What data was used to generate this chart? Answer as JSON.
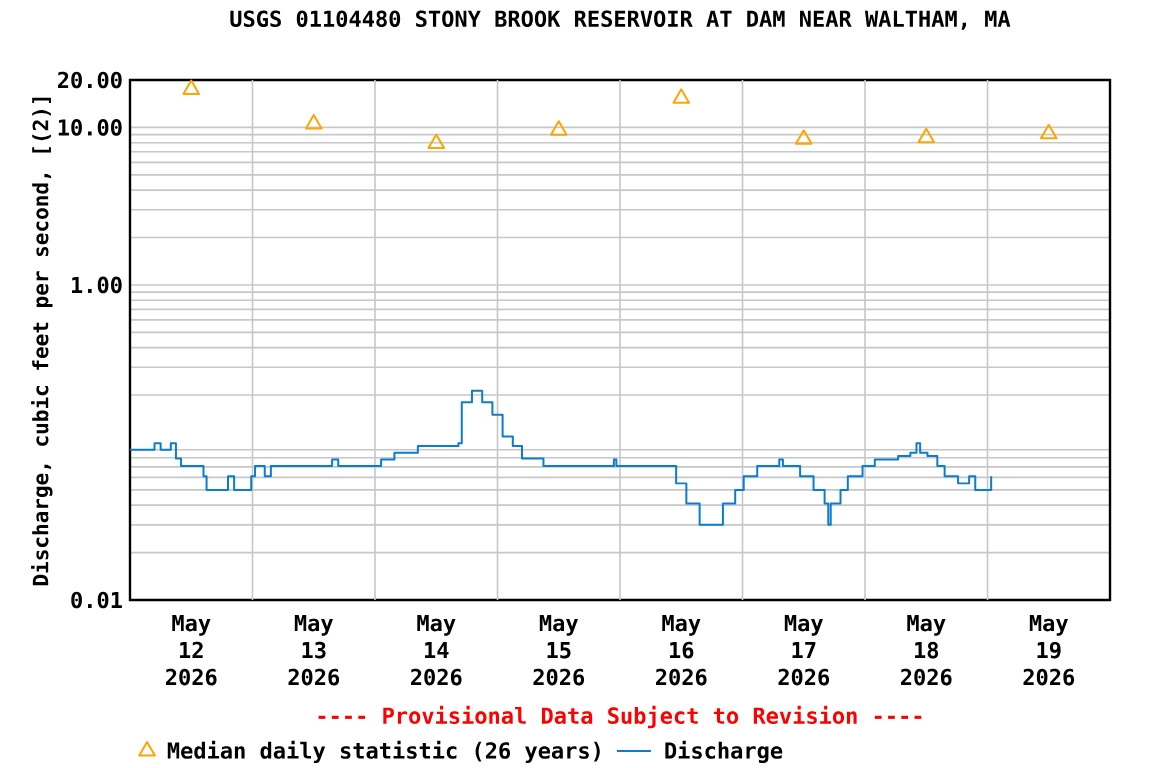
{
  "chart_data": {
    "type": "step",
    "title": "USGS 01104480 STONY BROOK RESERVOIR AT DAM NEAR WALTHAM, MA",
    "ylabel": "Discharge, cubic feet per second, [(2)]",
    "annotations": [
      "---- Provisional Data Subject to Revision ----"
    ],
    "log": "y",
    "grid": true,
    "legend": "bottom",
    "xlim": [
      "2026-05-12T00:00",
      "2026-05-20T00:00"
    ],
    "xticks": [
      {
        "value": "2026-05-12T12:00",
        "label": "May 12 2026"
      },
      {
        "value": "2026-05-13T12:00",
        "label": "May 13 2026"
      },
      {
        "value": "2026-05-14T12:00",
        "label": "May 14 2026"
      },
      {
        "value": "2026-05-15T12:00",
        "label": "May 15 2026"
      },
      {
        "value": "2026-05-16T12:00",
        "label": "May 16 2026"
      },
      {
        "value": "2026-05-17T12:00",
        "label": "May 17 2026"
      },
      {
        "value": "2026-05-18T12:00",
        "label": "May 18 2026"
      },
      {
        "value": "2026-05-19T12:00",
        "label": "May 19 2026"
      },
      {
        "value": "2026-05-13T00:00",
        "label": null
      },
      {
        "value": "2026-05-14T00:00",
        "label": null
      },
      {
        "value": "2026-05-15T00:00",
        "label": null
      },
      {
        "value": "2026-05-16T00:00",
        "label": null
      },
      {
        "value": "2026-05-17T00:00",
        "label": null
      },
      {
        "value": "2026-05-18T00:00",
        "label": null
      },
      {
        "value": "2026-05-19T00:00",
        "label": null
      }
    ],
    "ylim": [
      0.01,
      20
    ],
    "yticks": [
      0.01,
      {
        "value": 1,
        "label": "1.00"
      },
      {
        "value": 10,
        "label": "10.00"
      },
      {
        "value": 20,
        "label": "20.00"
      }
    ],
    "series": [
      {
        "name": "Median daily statistic (26 years)",
        "type": "scatter",
        "marker": "triangle",
        "color": "#ffa500",
        "x": [
          "2026-05-12T12:00",
          "2026-05-13T12:00",
          "2026-05-14T12:00",
          "2026-05-15T12:00",
          "2026-05-16T12:00",
          "2026-05-17T12:00",
          "2026-05-18T12:00",
          "2026-05-19T12:00"
        ],
        "values": [
          17.4,
          10.5,
          7.9,
          9.6,
          15.3,
          8.4,
          8.6,
          9.1
        ]
      },
      {
        "name": "Discharge",
        "color": "#0a7dcf",
        "x": [
          "2026-05-12T00:00",
          "2026-05-12T04:48",
          "2026-05-12T06:00",
          "2026-05-12T08:00",
          "2026-05-12T09:00",
          "2026-05-12T10:00",
          "2026-05-12T13:12",
          "2026-05-12T14:24",
          "2026-05-12T15:00",
          "2026-05-12T18:00",
          "2026-05-12T19:12",
          "2026-05-12T20:24",
          "2026-05-12T23:00",
          "2026-05-12T23:45",
          "2026-05-13T00:30",
          "2026-05-13T02:24",
          "2026-05-13T03:36",
          "2026-05-13T15:00",
          "2026-05-13T15:36",
          "2026-05-13T16:48",
          "2026-05-14T01:12",
          "2026-05-14T03:48",
          "2026-05-14T08:24",
          "2026-05-14T16:20",
          "2026-05-14T17:00",
          "2026-05-14T19:00",
          "2026-05-14T21:00",
          "2026-05-14T23:00",
          "2026-05-15T01:00",
          "2026-05-15T03:00",
          "2026-05-15T04:48",
          "2026-05-15T09:00",
          "2026-05-15T22:48",
          "2026-05-15T23:17",
          "2026-05-16T10:20",
          "2026-05-16T11:00",
          "2026-05-16T13:00",
          "2026-05-16T15:36",
          "2026-05-16T19:26",
          "2026-05-16T20:10",
          "2026-05-16T22:34",
          "2026-05-17T00:14",
          "2026-05-17T02:53",
          "2026-05-17T07:12",
          "2026-05-17T07:55",
          "2026-05-17T10:48",
          "2026-05-17T11:17",
          "2026-05-17T13:55",
          "2026-05-17T16:05",
          "2026-05-17T16:48",
          "2026-05-17T17:17",
          "2026-05-17T19:12",
          "2026-05-17T20:38",
          "2026-05-17T23:31",
          "2026-05-18T01:55",
          "2026-05-18T06:29",
          "2026-05-18T08:53",
          "2026-05-18T10:05",
          "2026-05-18T10:48",
          "2026-05-18T12:14",
          "2026-05-18T14:10",
          "2026-05-18T15:36",
          "2026-05-18T18:14",
          "2026-05-18T20:24",
          "2026-05-18T21:36",
          "2026-05-19T00:43"
        ],
        "values": [
          0.09,
          0.099,
          0.09,
          0.099,
          0.079,
          0.071,
          0.071,
          0.061,
          0.05,
          0.05,
          0.061,
          0.05,
          0.05,
          0.061,
          0.071,
          0.061,
          0.071,
          0.071,
          0.078,
          0.071,
          0.078,
          0.086,
          0.095,
          0.099,
          0.18,
          0.213,
          0.18,
          0.15,
          0.109,
          0.095,
          0.079,
          0.071,
          0.078,
          0.071,
          0.071,
          0.055,
          0.041,
          0.03,
          0.03,
          0.041,
          0.05,
          0.061,
          0.071,
          0.078,
          0.071,
          0.071,
          0.061,
          0.05,
          0.041,
          0.03,
          0.041,
          0.05,
          0.061,
          0.071,
          0.078,
          0.082,
          0.086,
          0.099,
          0.086,
          0.082,
          0.071,
          0.061,
          0.055,
          0.061,
          0.05,
          0.061
        ]
      }
    ]
  }
}
